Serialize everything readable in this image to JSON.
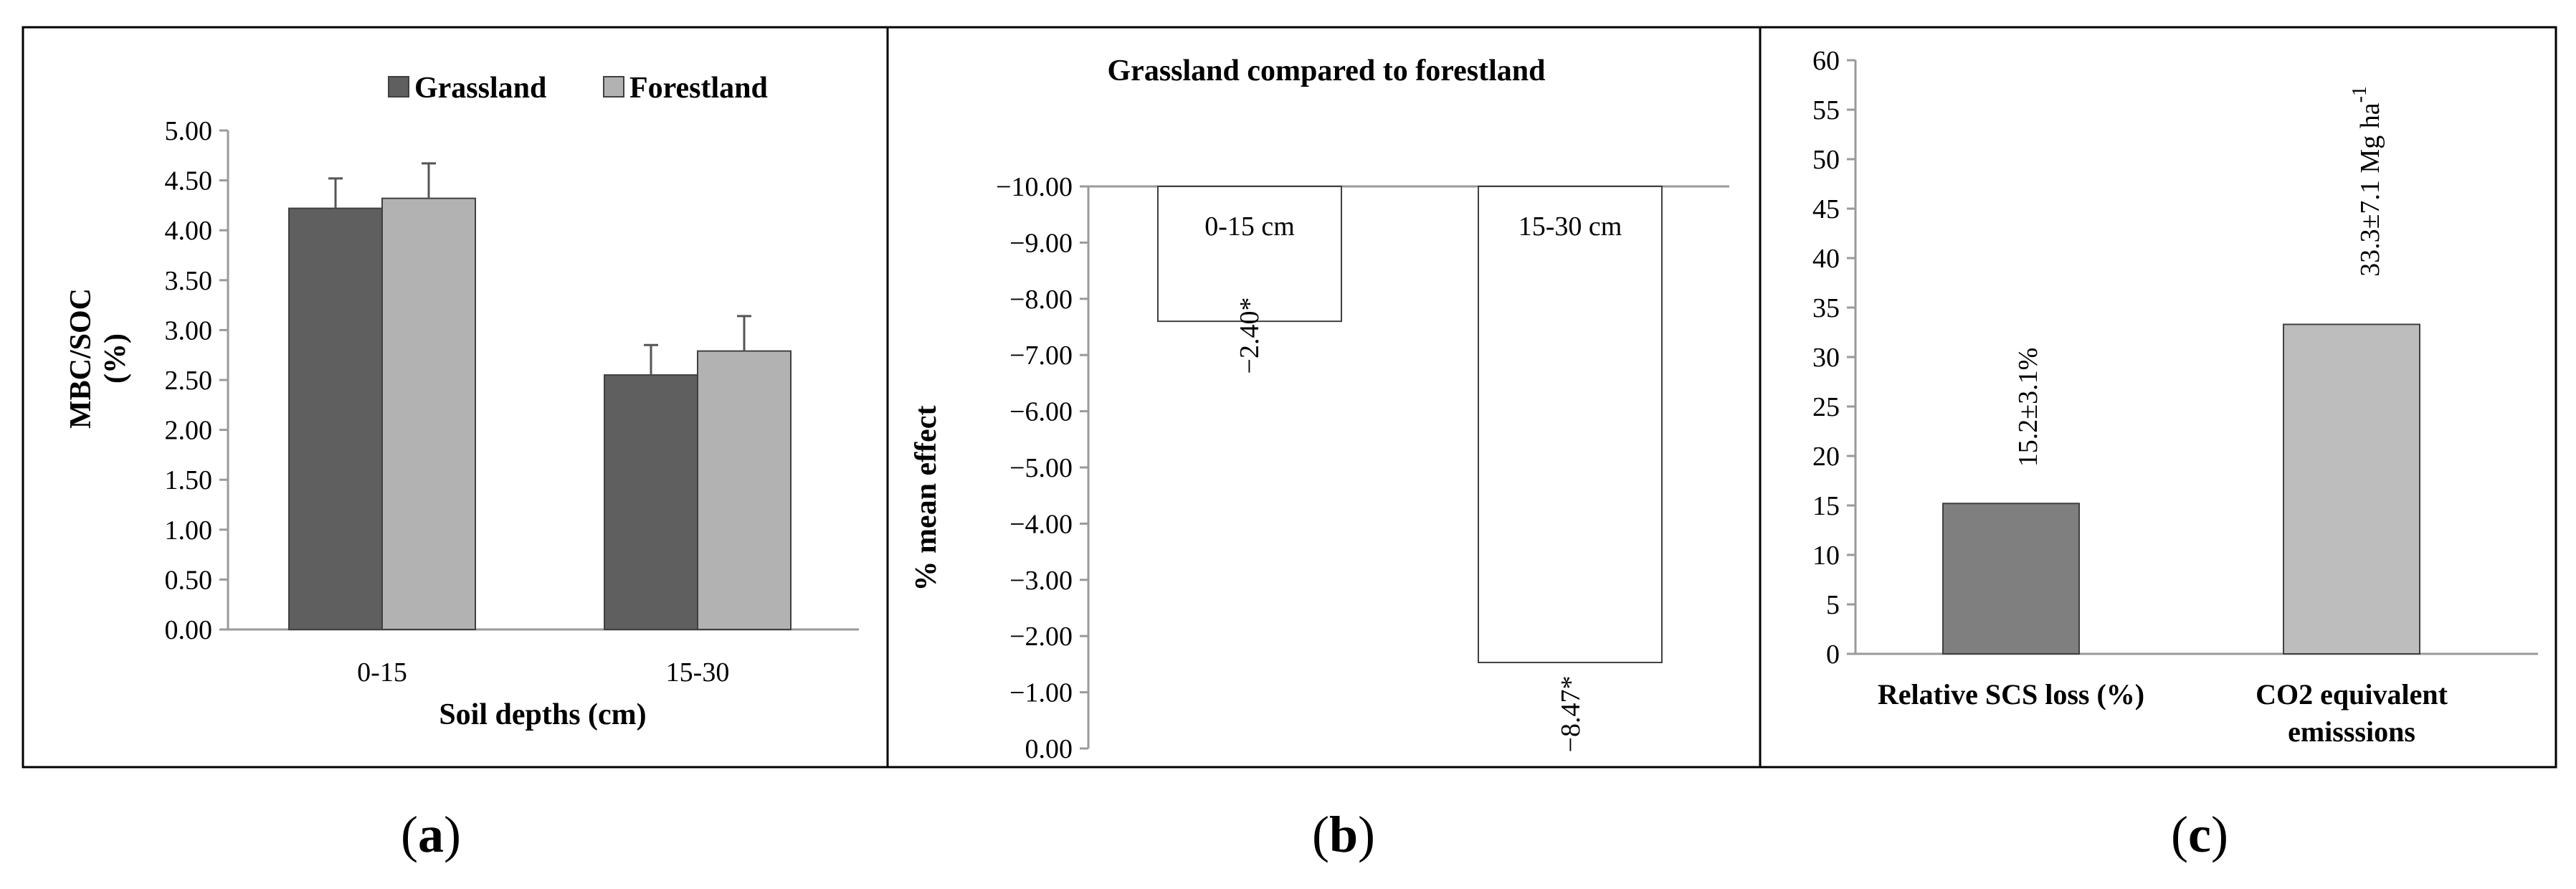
{
  "colors": {
    "grassland": "#5f5f5f",
    "forestland": "#b2b2b2",
    "relative_bar": "#7f7f7f",
    "co2_bar": "#bdbdbd",
    "bar_outline": "#404040"
  },
  "panels": {
    "a": {
      "label_open": "(",
      "letter": "a",
      "label_close": ")"
    },
    "b": {
      "label_open": "(",
      "letter": "b",
      "label_close": ")"
    },
    "c": {
      "label_open": "(",
      "letter": "c",
      "label_close": ")"
    }
  },
  "chart_data": [
    {
      "type": "bar",
      "panel": "a",
      "title": "",
      "categories": [
        "0-15",
        "15-30"
      ],
      "series": [
        {
          "name": "Grassland",
          "values": [
            4.22,
            2.55
          ],
          "error": [
            0.3,
            0.3
          ]
        },
        {
          "name": "Forestland",
          "values": [
            4.32,
            2.79
          ],
          "error": [
            0.35,
            0.35
          ]
        }
      ],
      "xlabel": "Soil depths (cm)",
      "ylabel_lines": [
        "MBC/SOC",
        "(%)"
      ],
      "ylim": [
        0,
        5
      ],
      "yticks": [
        "0.00",
        "0.50",
        "1.00",
        "1.50",
        "2.00",
        "2.50",
        "3.00",
        "3.50",
        "4.00",
        "4.50",
        "5.00"
      ],
      "legend": "top-center",
      "grid": false
    },
    {
      "type": "bar",
      "panel": "b",
      "title": "Grassland compared to forestland",
      "categories": [
        "0-15 cm",
        "15-30 cm"
      ],
      "values": [
        -2.4,
        -8.47
      ],
      "value_labels": [
        "−2.40*",
        "−8.47*"
      ],
      "ylabel": "% mean effect",
      "ylim": [
        -10,
        0
      ],
      "yticks": [
        "0.00",
        "−1.00",
        "−2.00",
        "−3.00",
        "−4.00",
        "−5.00",
        "−6.00",
        "−7.00",
        "−8.00",
        "−9.00",
        "−10.00"
      ],
      "grid": false
    },
    {
      "type": "bar",
      "panel": "c",
      "title": "",
      "categories": [
        "Relative SCS loss (%)",
        "CO2 equivalent emisssions"
      ],
      "category_lines": [
        [
          "Relative SCS loss (%)"
        ],
        [
          "CO2 equivalent",
          "emisssions"
        ]
      ],
      "values": [
        15.2,
        33.3
      ],
      "value_labels": [
        "15.2±3.1%",
        "33.3±7.1  Mg ha"
      ],
      "value_label_superscript": "-1",
      "ylim": [
        0,
        60
      ],
      "yticks": [
        "0",
        "5",
        "10",
        "15",
        "20",
        "25",
        "30",
        "35",
        "40",
        "45",
        "50",
        "55",
        "60"
      ],
      "grid": false
    }
  ]
}
